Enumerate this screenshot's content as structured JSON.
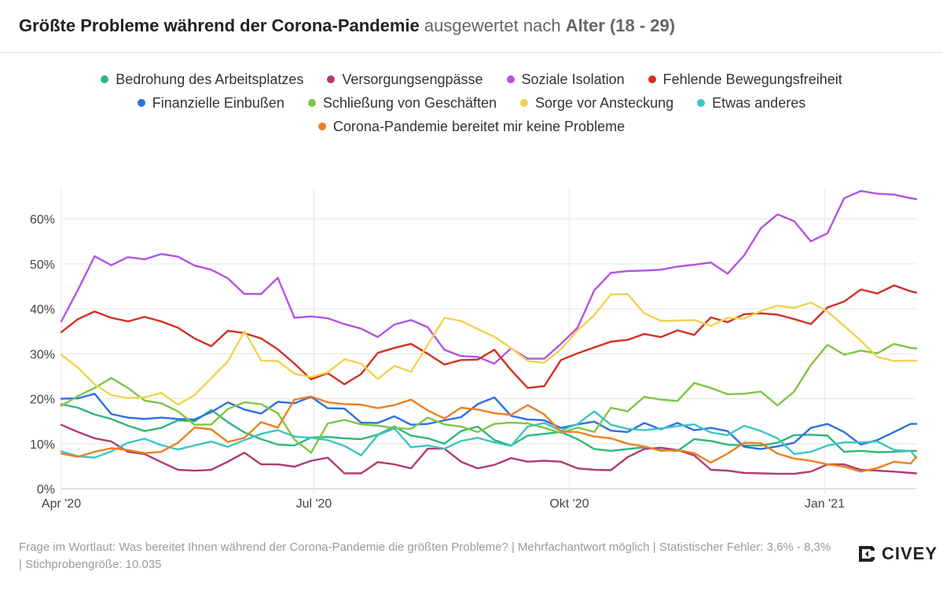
{
  "header": {
    "title_bold": "Größte Probleme während der Corona-Pandemie",
    "title_rest": "ausgewertet nach",
    "title_group": "Alter (18 - 29)"
  },
  "footer": {
    "note": "Frage im Wortlaut: Was bereitet Ihnen während der Corona-Pandemie die größten Probleme? | Mehrfachantwort möglich | Statistischer Fehler: 3,6% - 8,3% | Stichprobengröße: 10.035"
  },
  "logo": {
    "text": "CIVEY",
    "icon": "civey-logo-icon"
  },
  "chart_data": {
    "type": "line",
    "title": "Größte Probleme während der Corona-Pandemie ausgewertet nach Alter (18 - 29)",
    "xlabel": "",
    "ylabel": "",
    "ylim": [
      0,
      65
    ],
    "yticks": [
      0,
      10,
      20,
      30,
      40,
      50,
      60
    ],
    "ytick_labels": [
      "0%",
      "10%",
      "20%",
      "30%",
      "40%",
      "50%",
      "60%"
    ],
    "x_range_days": [
      0,
      308
    ],
    "xticks": [
      {
        "label": "Apr '20",
        "day": 0
      },
      {
        "label": "Jul '20",
        "day": 91
      },
      {
        "label": "Okt '20",
        "day": 183
      },
      {
        "label": "Jan '21",
        "day": 275
      }
    ],
    "grid": true,
    "legend_position": "top",
    "x_days": [
      0,
      6,
      12,
      18,
      24,
      30,
      36,
      42,
      48,
      54,
      60,
      66,
      72,
      78,
      84,
      90,
      96,
      102,
      108,
      114,
      120,
      126,
      132,
      138,
      144,
      150,
      156,
      162,
      168,
      174,
      180,
      186,
      192,
      198,
      204,
      210,
      216,
      222,
      228,
      234,
      240,
      246,
      252,
      258,
      264,
      270,
      276,
      282,
      288,
      294,
      300,
      306,
      308
    ],
    "series": [
      {
        "name": "Bedrohung des Arbeitsplatzes",
        "color": "#2fb67c",
        "values": [
          18.8,
          18,
          16.5,
          15.5,
          14,
          12.8,
          13.5,
          15.2,
          15,
          17.5,
          14.8,
          12.5,
          11,
          9.8,
          9.6,
          11.4,
          11.5,
          11.2,
          11,
          12,
          13.8,
          11.8,
          11.2,
          10,
          12.8,
          13.8,
          10.8,
          9.6,
          11.8,
          12.2,
          12.6,
          11,
          8.8,
          8.4,
          8.8,
          9.2,
          8.6,
          8.4,
          11,
          10.6,
          9.8,
          9.6,
          9.6,
          10.2,
          11.9,
          12,
          11.8,
          8.2,
          8.4,
          8.1,
          8.2,
          8.4,
          8.4
        ]
      },
      {
        "name": "Versorgungsengpässe",
        "color": "#b03b72",
        "values": [
          14.2,
          12.6,
          11.2,
          10.5,
          8.2,
          7.7,
          5.9,
          4.2,
          4,
          4.2,
          6,
          8,
          5.4,
          5.4,
          4.9,
          6.2,
          6.9,
          3.4,
          3.4,
          5.9,
          5.4,
          4.5,
          8.9,
          8.9,
          6,
          4.5,
          5.3,
          6.8,
          6,
          6.2,
          6,
          4.5,
          4.2,
          4.1,
          7,
          8.8,
          9.1,
          8.6,
          7.4,
          4.2,
          4,
          3.5,
          3.4,
          3.3,
          3.3,
          3.8,
          5.4,
          5.4,
          4.2,
          4,
          3.8,
          3.5,
          3.4
        ]
      },
      {
        "name": "Soziale Isolation",
        "color": "#b452e6",
        "values": [
          37.2,
          44.2,
          51.7,
          49.7,
          51.5,
          51,
          52.2,
          51.6,
          49.6,
          48.7,
          46.8,
          43.3,
          43.3,
          46.9,
          38,
          38.3,
          37.9,
          36.6,
          35.6,
          33.7,
          36.5,
          37.5,
          35.9,
          30.9,
          29.5,
          29.3,
          27.8,
          31.2,
          28.9,
          28.9,
          32.2,
          35.8,
          44.1,
          48,
          48.4,
          48.5,
          48.7,
          49.4,
          49.8,
          50.3,
          47.8,
          51.9,
          57.9,
          61,
          59.5,
          55,
          56.8,
          64.6,
          66.2,
          65.6,
          65.4,
          64.6,
          64.4
        ]
      },
      {
        "name": "Fehlende Bewegungsfreiheit",
        "color": "#d42f23",
        "values": [
          34.8,
          37.7,
          39.4,
          38,
          37.2,
          38.2,
          37.2,
          35.8,
          33.4,
          31.7,
          35.1,
          34.6,
          33.4,
          31,
          27.8,
          24.3,
          25.7,
          23.2,
          25.5,
          30.2,
          31.3,
          32.2,
          30,
          27.6,
          28.6,
          28.7,
          30.9,
          26.4,
          22.4,
          22.8,
          28.6,
          30.1,
          31.4,
          32.7,
          33.1,
          34.4,
          33.7,
          35.2,
          34.2,
          38.1,
          37,
          38.8,
          39,
          38.7,
          37.7,
          36.6,
          40.3,
          41.6,
          44.3,
          43.4,
          45.2,
          43.9,
          43.6
        ]
      },
      {
        "name": "Finanzielle Einbußen",
        "color": "#2e6fe6",
        "values": [
          20,
          20.1,
          21.1,
          16.6,
          15.8,
          15.5,
          15.8,
          15.5,
          15.4,
          17,
          19.2,
          17.6,
          16.7,
          19.3,
          19,
          20.4,
          17.9,
          17.8,
          14.7,
          14.6,
          16.1,
          14.2,
          14.4,
          15.2,
          15.9,
          18.8,
          20.3,
          16.2,
          15.4,
          15.2,
          13.5,
          14.3,
          14.9,
          12.9,
          12.6,
          14.6,
          13.2,
          14.6,
          13,
          13.5,
          12.8,
          9.3,
          8.8,
          9.4,
          10.2,
          13.5,
          14.4,
          12.6,
          9.8,
          10.8,
          12.6,
          14.4,
          14.4
        ]
      },
      {
        "name": "Schließung von Geschäften",
        "color": "#7ec642",
        "values": [
          18.4,
          20.6,
          22.4,
          24.6,
          22.4,
          19.6,
          19,
          17.2,
          14.2,
          14.3,
          17.7,
          19.2,
          18.8,
          16.8,
          10.9,
          8,
          14.5,
          15.3,
          14.3,
          14,
          13.5,
          13.3,
          15.8,
          14.3,
          13.8,
          12.6,
          14.4,
          14.7,
          14.5,
          13.5,
          12.4,
          13.6,
          12.6,
          18,
          17.2,
          20.4,
          19.8,
          19.5,
          23.5,
          22.4,
          21,
          21.1,
          21.6,
          18.5,
          21.6,
          27.5,
          32,
          29.8,
          30.7,
          30.1,
          32.2,
          31.3,
          31.2
        ]
      },
      {
        "name": "Sorge vor Ansteckung",
        "color": "#f2d24e",
        "values": [
          29.8,
          26.9,
          23.2,
          20.8,
          20.2,
          20.3,
          21.3,
          18.7,
          20.8,
          24.6,
          28.3,
          35,
          28.5,
          28.4,
          25.6,
          24.8,
          25.9,
          28.8,
          27.8,
          24.4,
          27.3,
          26,
          32,
          38,
          37.3,
          35.5,
          33.8,
          31.3,
          28.4,
          28,
          31,
          35.2,
          38.6,
          43.2,
          43.3,
          39,
          37.3,
          37.4,
          37.5,
          36.2,
          38,
          37.8,
          39.5,
          40.7,
          40.2,
          41.4,
          39.4,
          36.2,
          32.9,
          29.3,
          28.4,
          28.5,
          28.4
        ]
      },
      {
        "name": "Etwas anderes",
        "color": "#3bc6c2",
        "values": [
          8.3,
          7.2,
          6.9,
          8.3,
          10.2,
          11.1,
          9.7,
          8.7,
          9.6,
          10.5,
          9.3,
          10.8,
          12.2,
          13,
          11.6,
          11.3,
          10.8,
          9.5,
          7.4,
          11.9,
          13.4,
          9.2,
          9.6,
          8.9,
          10.6,
          11.3,
          10.3,
          9.5,
          13.8,
          14.6,
          12.9,
          14.4,
          17.2,
          14.2,
          13.3,
          13,
          13.4,
          13.9,
          14.3,
          12.5,
          11.9,
          14,
          12.8,
          11.2,
          7.7,
          8.2,
          9.6,
          10.3,
          10.3,
          10.5,
          8.6,
          8.4,
          6.8
        ]
      },
      {
        "name": "Corona-Pandemie bereitet mir keine Probleme",
        "color": "#f07f1f",
        "values": [
          7.8,
          7.1,
          8.2,
          9,
          8.6,
          7.9,
          8.2,
          10.2,
          13.6,
          13.2,
          10.4,
          11.3,
          14.8,
          13.6,
          19.8,
          20.5,
          19.2,
          18.8,
          18.7,
          17.9,
          18.6,
          19.8,
          17.4,
          15.6,
          18,
          17.6,
          16.8,
          16.4,
          18.6,
          16.5,
          12.7,
          12.6,
          11.6,
          11.2,
          10,
          9.4,
          8.4,
          8.6,
          7.9,
          5.8,
          7.8,
          10.2,
          10.1,
          7.8,
          6.7,
          6.2,
          5.4,
          4.9,
          3.8,
          4.6,
          6,
          5.6,
          7.1
        ]
      }
    ]
  }
}
